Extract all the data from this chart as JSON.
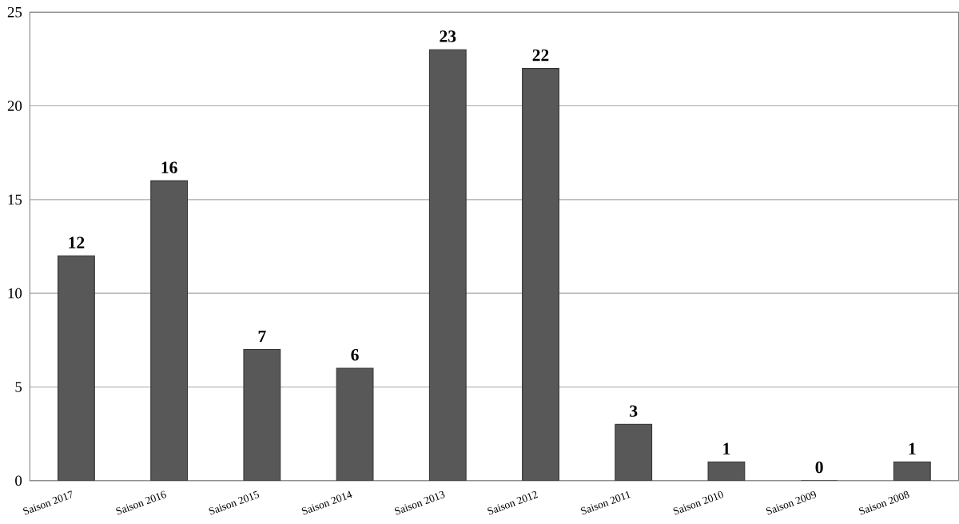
{
  "chart_data": {
    "type": "bar",
    "categories": [
      "Saison 2017",
      "Saison 2016",
      "Saison 2015",
      "Saison 2014",
      "Saison 2013",
      "Saison 2012",
      "Saison 2011",
      "Saison 2010",
      "Saison 2009",
      "Saison 2008"
    ],
    "values": [
      12,
      16,
      7,
      6,
      23,
      22,
      3,
      1,
      0,
      1
    ],
    "color": "#585858",
    "ylim": [
      0,
      25
    ],
    "yticks": [
      0,
      5,
      10,
      15,
      20,
      25
    ],
    "grid": "y",
    "data_labels": true
  }
}
